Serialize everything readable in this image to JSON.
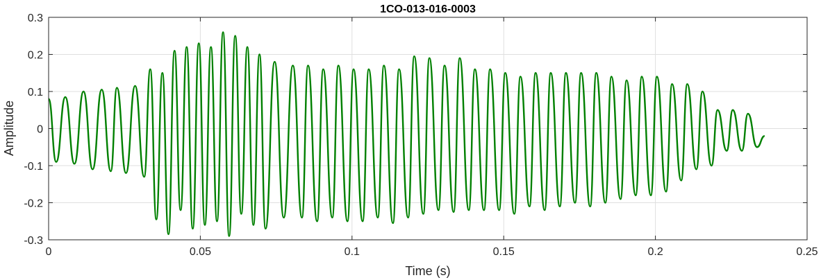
{
  "chart_data": {
    "type": "line",
    "title": "1CO-013-016-0003",
    "xlabel": "Time (s)",
    "ylabel": "Amplitude",
    "xlim": [
      0,
      0.25
    ],
    "ylim": [
      -0.3,
      0.3
    ],
    "xticks": [
      0,
      0.05,
      0.1,
      0.15,
      0.2,
      0.25
    ],
    "xtick_labels": [
      "0",
      "0.05",
      "0.1",
      "0.15",
      "0.2",
      "0.25"
    ],
    "yticks": [
      -0.3,
      -0.2,
      -0.1,
      0,
      0.1,
      0.2,
      0.3
    ],
    "ytick_labels": [
      "-0.3",
      "-0.2",
      "-0.1",
      "0",
      "0.1",
      "0.2",
      "0.3"
    ],
    "grid": true,
    "series": [
      {
        "color": "#008000",
        "x": [
          0.0,
          0.0025,
          0.0055,
          0.0085,
          0.0115,
          0.0145,
          0.0175,
          0.0205,
          0.0225,
          0.0255,
          0.0285,
          0.0315,
          0.0335,
          0.0355,
          0.0375,
          0.0395,
          0.0415,
          0.0435,
          0.0455,
          0.0475,
          0.0495,
          0.0515,
          0.0535,
          0.0555,
          0.0575,
          0.0595,
          0.0615,
          0.0635,
          0.0655,
          0.0675,
          0.0695,
          0.0715,
          0.0745,
          0.0775,
          0.0805,
          0.0835,
          0.0855,
          0.0885,
          0.0905,
          0.0935,
          0.0955,
          0.0985,
          0.1005,
          0.1035,
          0.1055,
          0.1085,
          0.1105,
          0.1135,
          0.1155,
          0.1185,
          0.1205,
          0.1235,
          0.1255,
          0.1285,
          0.1305,
          0.1335,
          0.1355,
          0.1385,
          0.1405,
          0.1435,
          0.1455,
          0.1485,
          0.1505,
          0.1535,
          0.1555,
          0.1585,
          0.1605,
          0.1635,
          0.1655,
          0.1685,
          0.1705,
          0.1735,
          0.1755,
          0.1785,
          0.1805,
          0.1835,
          0.1855,
          0.1885,
          0.1905,
          0.1935,
          0.1955,
          0.1985,
          0.2005,
          0.2035,
          0.2055,
          0.2085,
          0.2105,
          0.2135,
          0.2155,
          0.2185,
          0.2205,
          0.2235,
          0.2255,
          0.2285,
          0.2305,
          0.2335,
          0.236
        ],
        "y": [
          0.08,
          -0.09,
          0.085,
          -0.095,
          0.1,
          -0.11,
          0.105,
          -0.115,
          0.11,
          -0.12,
          0.115,
          -0.13,
          0.16,
          -0.245,
          0.15,
          -0.285,
          0.21,
          -0.22,
          0.22,
          -0.27,
          0.23,
          -0.26,
          0.22,
          -0.25,
          0.26,
          -0.29,
          0.25,
          -0.23,
          0.22,
          -0.26,
          0.2,
          -0.27,
          0.18,
          -0.24,
          0.17,
          -0.24,
          0.17,
          -0.25,
          0.16,
          -0.24,
          0.17,
          -0.25,
          0.16,
          -0.25,
          0.16,
          -0.24,
          0.17,
          -0.255,
          0.16,
          -0.24,
          0.195,
          -0.23,
          0.19,
          -0.22,
          0.17,
          -0.225,
          0.19,
          -0.22,
          0.16,
          -0.22,
          0.16,
          -0.22,
          0.15,
          -0.23,
          0.14,
          -0.21,
          0.15,
          -0.22,
          0.15,
          -0.21,
          0.15,
          -0.2,
          0.15,
          -0.21,
          0.15,
          -0.2,
          0.14,
          -0.19,
          0.13,
          -0.18,
          0.14,
          -0.18,
          0.14,
          -0.17,
          0.12,
          -0.14,
          0.12,
          -0.11,
          0.1,
          -0.1,
          0.05,
          -0.06,
          0.05,
          -0.06,
          0.04,
          -0.05,
          -0.02
        ]
      }
    ]
  }
}
